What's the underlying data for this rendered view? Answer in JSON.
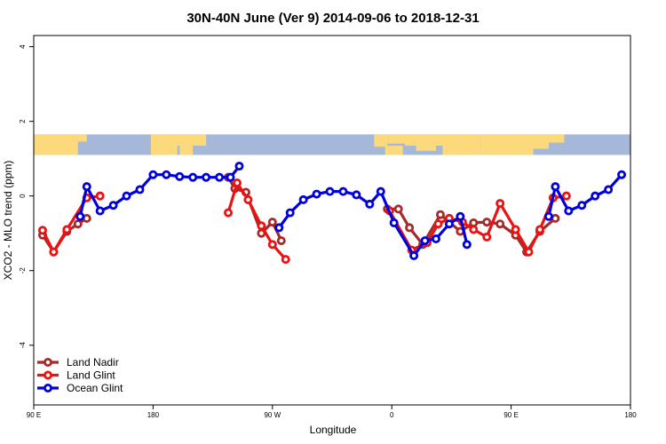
{
  "chart_data": {
    "type": "line",
    "title": "30N-40N June (Ver 9)   2014-09-06 to 2018-12-31",
    "xlabel": "Longitude",
    "ylabel": "XCO2 - MLO trend (ppm)",
    "xlim": [
      -90,
      180
    ],
    "ylim": [
      -5.6,
      4.3
    ],
    "x_ticks": [
      {
        "value": -90,
        "label": "90 E"
      },
      {
        "value": -36,
        "label": "180"
      },
      {
        "value": 18,
        "label": "90 W"
      },
      {
        "value": 72,
        "label": "0"
      },
      {
        "value": 126,
        "label": "90 E"
      },
      {
        "value": 180,
        "label": "180"
      }
    ],
    "y_ticks": [
      {
        "value": -4,
        "label": "-4"
      },
      {
        "value": -2,
        "label": "-2"
      },
      {
        "value": 0,
        "label": "0"
      },
      {
        "value": 2,
        "label": "2"
      },
      {
        "value": 4,
        "label": "4"
      }
    ],
    "land_band": {
      "y_from": 1.1,
      "y_to": 1.65,
      "ocean_color": "#a5b8d8",
      "land_color": "#fcd97a"
    },
    "legend_position": "bottom-left",
    "series": [
      {
        "name": "Land Nadir",
        "color": "#a52a2a",
        "segments": [
          [
            [
              -86,
              -1.05
            ],
            [
              -81,
              -1.5
            ],
            [
              -75,
              -0.95
            ],
            [
              -70,
              -0.75
            ],
            [
              -66,
              -0.6
            ]
          ],
          [
            [
              -2,
              0.5
            ],
            [
              1,
              0.2
            ],
            [
              6,
              0.1
            ],
            [
              13,
              -1.0
            ],
            [
              18,
              -0.7
            ],
            [
              22,
              -1.2
            ]
          ],
          [
            [
              70,
              -0.35
            ],
            [
              75,
              -0.35
            ],
            [
              80,
              -0.85
            ],
            [
              86,
              -1.3
            ],
            [
              94,
              -0.5
            ],
            [
              103,
              -0.95
            ],
            [
              109,
              -0.72
            ],
            [
              115,
              -0.7
            ],
            [
              121,
              -0.75
            ],
            [
              128,
              -1.05
            ],
            [
              133,
              -1.5
            ],
            [
              139,
              -0.95
            ],
            [
              146,
              -0.6
            ]
          ]
        ]
      },
      {
        "name": "Land Glint",
        "color": "#ee1111",
        "segments": [
          [
            [
              -86,
              -0.92
            ],
            [
              -81,
              -1.5
            ],
            [
              -75,
              -0.9
            ],
            [
              -66,
              -0.05
            ],
            [
              -60,
              0.0
            ]
          ],
          [
            [
              -2,
              -0.45
            ],
            [
              2,
              0.35
            ],
            [
              7,
              -0.1
            ],
            [
              13,
              -0.8
            ],
            [
              18,
              -1.3
            ],
            [
              24,
              -1.7
            ]
          ],
          [
            [
              71,
              -0.4
            ],
            [
              81,
              -1.45
            ],
            [
              88,
              -1.25
            ],
            [
              93,
              -0.75
            ],
            [
              98,
              -0.6
            ],
            [
              104,
              -0.7
            ],
            [
              109,
              -0.9
            ],
            [
              115,
              -1.1
            ],
            [
              121,
              -0.2
            ],
            [
              128,
              -0.9
            ],
            [
              134,
              -1.5
            ],
            [
              139,
              -0.9
            ],
            [
              145,
              -0.05
            ],
            [
              151,
              0.0
            ]
          ]
        ]
      },
      {
        "name": "Ocean Glint",
        "color": "#0000dd",
        "segments": [
          [
            [
              -69,
              -0.55
            ],
            [
              -66,
              0.25
            ],
            [
              -60,
              -0.4
            ],
            [
              -54,
              -0.25
            ],
            [
              -48,
              0.0
            ],
            [
              -42,
              0.17
            ],
            [
              -36,
              0.57
            ],
            [
              -30,
              0.57
            ],
            [
              -24,
              0.52
            ],
            [
              -18,
              0.5
            ],
            [
              -12,
              0.5
            ],
            [
              -6,
              0.5
            ],
            [
              -1,
              0.5
            ],
            [
              3,
              0.8
            ]
          ],
          [
            [
              21,
              -0.85
            ],
            [
              26,
              -0.45
            ],
            [
              32,
              -0.1
            ],
            [
              38,
              0.05
            ],
            [
              44,
              0.12
            ],
            [
              50,
              0.12
            ],
            [
              56,
              0.03
            ],
            [
              62,
              -0.22
            ],
            [
              67,
              0.12
            ],
            [
              73,
              -0.72
            ],
            [
              82,
              -1.6
            ],
            [
              87,
              -1.2
            ],
            [
              92,
              -1.15
            ],
            [
              98,
              -0.75
            ],
            [
              103,
              -0.55
            ],
            [
              106,
              -1.3
            ]
          ],
          [
            [
              143,
              -0.55
            ],
            [
              146,
              0.25
            ],
            [
              152,
              -0.4
            ],
            [
              158,
              -0.25
            ],
            [
              164,
              0.0
            ],
            [
              170,
              0.17
            ],
            [
              176,
              0.57
            ]
          ]
        ]
      }
    ]
  }
}
